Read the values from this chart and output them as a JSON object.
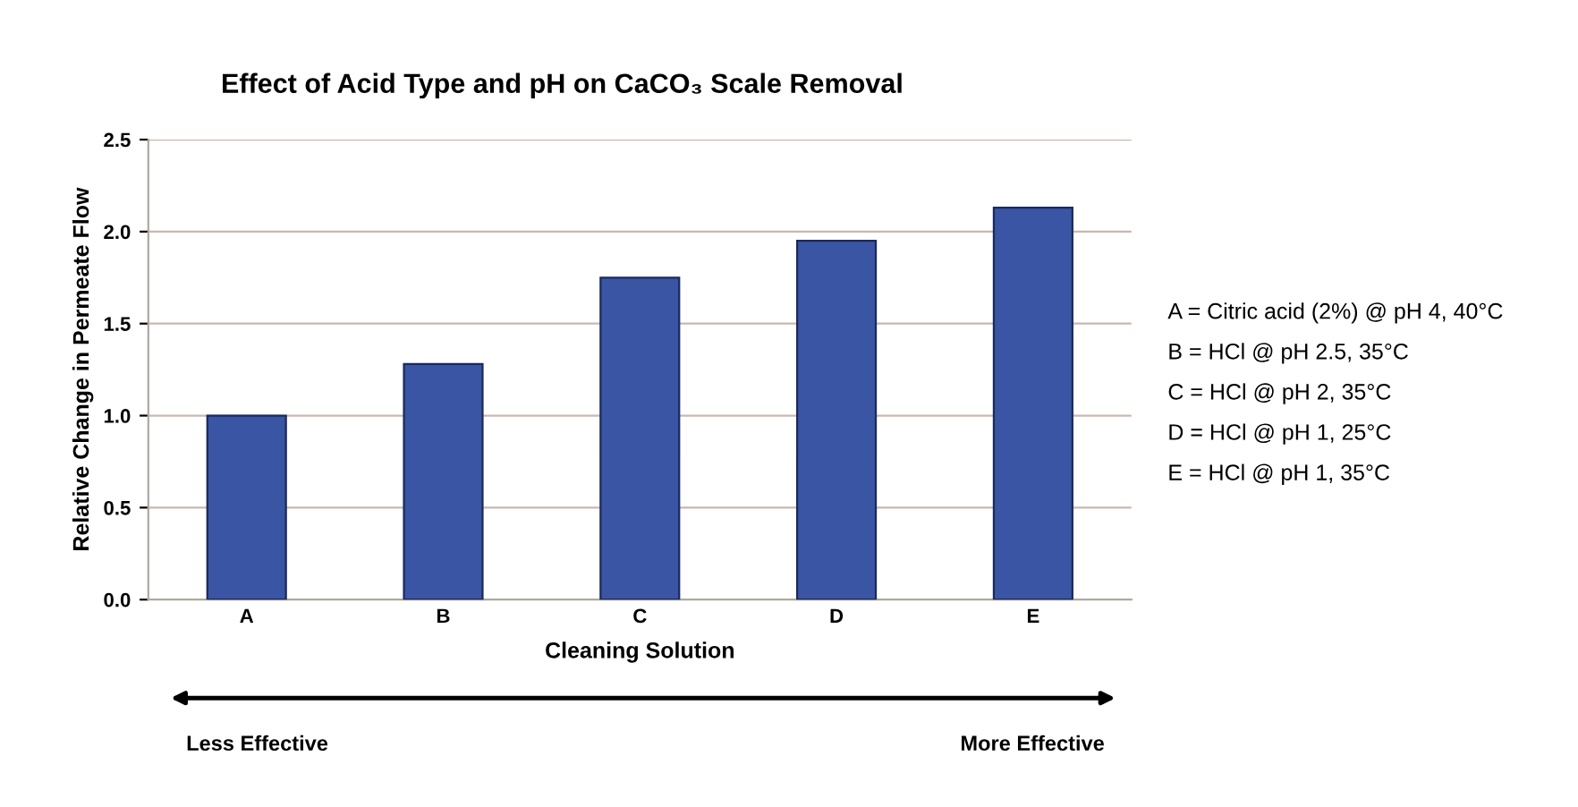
{
  "chart_data": {
    "type": "bar",
    "title": "Effect of Acid Type and pH on CaCO₃ Scale Removal",
    "xlabel": "Cleaning Solution",
    "ylabel": "Relative Change in Permeate Flow",
    "categories": [
      "A",
      "B",
      "C",
      "D",
      "E"
    ],
    "values": [
      1.0,
      1.28,
      1.75,
      1.95,
      2.13
    ],
    "color": "#3a55a4",
    "ylim": [
      0,
      2.5
    ],
    "yticks": [
      {
        "value": 0,
        "label": "0.0"
      },
      {
        "value": 0.5,
        "label": "0.5"
      },
      {
        "value": 1,
        "label": "1.0"
      },
      {
        "value": 1.5,
        "label": "1.5"
      },
      {
        "value": 2,
        "label": "2.0"
      },
      {
        "value": 2.5,
        "label": "2.5"
      }
    ],
    "grid": "y",
    "annotations": [
      "A = Citric acid (2%) @ pH 4, 40°C",
      "B = HCl @ pH 2.5, 35°C",
      "C = HCl @ pH 2, 35°C",
      "D = HCl @ pH 1, 25°C",
      "E = HCl @ pH 1, 35°C",
      "Less Effective",
      "More Effective"
    ]
  }
}
